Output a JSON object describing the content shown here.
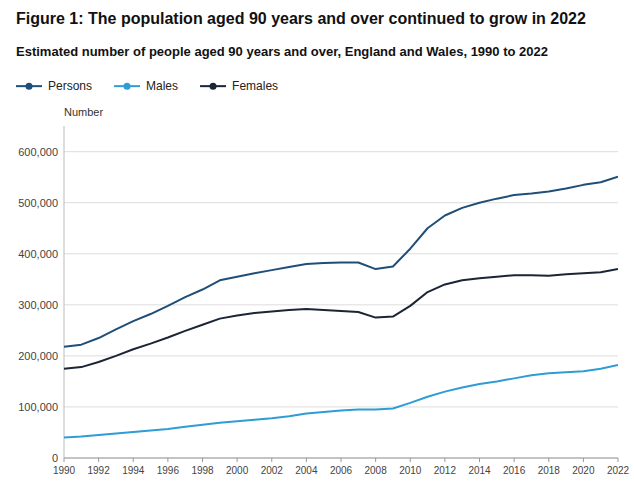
{
  "chart_data": {
    "type": "line",
    "title": "Figure 1: The population aged 90 years and over continued to grow in 2022",
    "subtitle": "Estimated number of people aged 90 years and over, England and Wales, 1990 to 2022",
    "y_label": "Number",
    "x": [
      1990,
      1991,
      1992,
      1993,
      1994,
      1995,
      1996,
      1997,
      1998,
      1999,
      2000,
      2001,
      2002,
      2003,
      2004,
      2005,
      2006,
      2007,
      2008,
      2009,
      2010,
      2011,
      2012,
      2013,
      2014,
      2015,
      2016,
      2017,
      2018,
      2019,
      2020,
      2021,
      2022
    ],
    "series": [
      {
        "name": "Persons",
        "color": "#1f4e79",
        "values": [
          218000,
          222000,
          235000,
          252000,
          268000,
          282000,
          298000,
          315000,
          330000,
          348000,
          355000,
          362000,
          368000,
          374000,
          380000,
          382000,
          383000,
          383000,
          370000,
          375000,
          410000,
          450000,
          475000,
          490000,
          500000,
          508000,
          515000,
          518000,
          522000,
          528000,
          535000,
          540000,
          550835
        ]
      },
      {
        "name": "Males",
        "color": "#2e9dd4",
        "values": [
          40000,
          42000,
          45000,
          48000,
          51000,
          54000,
          57000,
          61000,
          65000,
          69000,
          72000,
          75000,
          78000,
          82000,
          87000,
          90000,
          93000,
          95000,
          95000,
          97000,
          108000,
          120000,
          130000,
          138000,
          145000,
          150000,
          156000,
          162000,
          166000,
          168000,
          170000,
          175000,
          182000
        ]
      },
      {
        "name": "Females",
        "color": "#1a2535",
        "values": [
          175000,
          178000,
          188000,
          200000,
          213000,
          224000,
          236000,
          249000,
          261000,
          273000,
          279000,
          284000,
          287000,
          290000,
          292000,
          290000,
          288000,
          286000,
          275000,
          277000,
          298000,
          325000,
          340000,
          348000,
          352000,
          355000,
          358000,
          358000,
          357000,
          360000,
          362000,
          364000,
          370000
        ]
      }
    ],
    "xlim": [
      1990,
      2022
    ],
    "xticks": [
      1990,
      1992,
      1994,
      1996,
      1998,
      2000,
      2002,
      2004,
      2006,
      2008,
      2010,
      2012,
      2014,
      2016,
      2018,
      2020,
      2022
    ],
    "ylim": [
      0,
      650000
    ],
    "yticks": [
      0,
      {
        "value": 100000,
        "label": "100,000"
      },
      {
        "value": 200000,
        "label": "200,000"
      },
      {
        "value": 300000,
        "label": "300,000"
      },
      {
        "value": 400000,
        "label": "400,000"
      },
      {
        "value": 500000,
        "label": "500,000"
      },
      {
        "value": 600000,
        "label": "600,000"
      }
    ],
    "grid": true,
    "legend": "top"
  }
}
